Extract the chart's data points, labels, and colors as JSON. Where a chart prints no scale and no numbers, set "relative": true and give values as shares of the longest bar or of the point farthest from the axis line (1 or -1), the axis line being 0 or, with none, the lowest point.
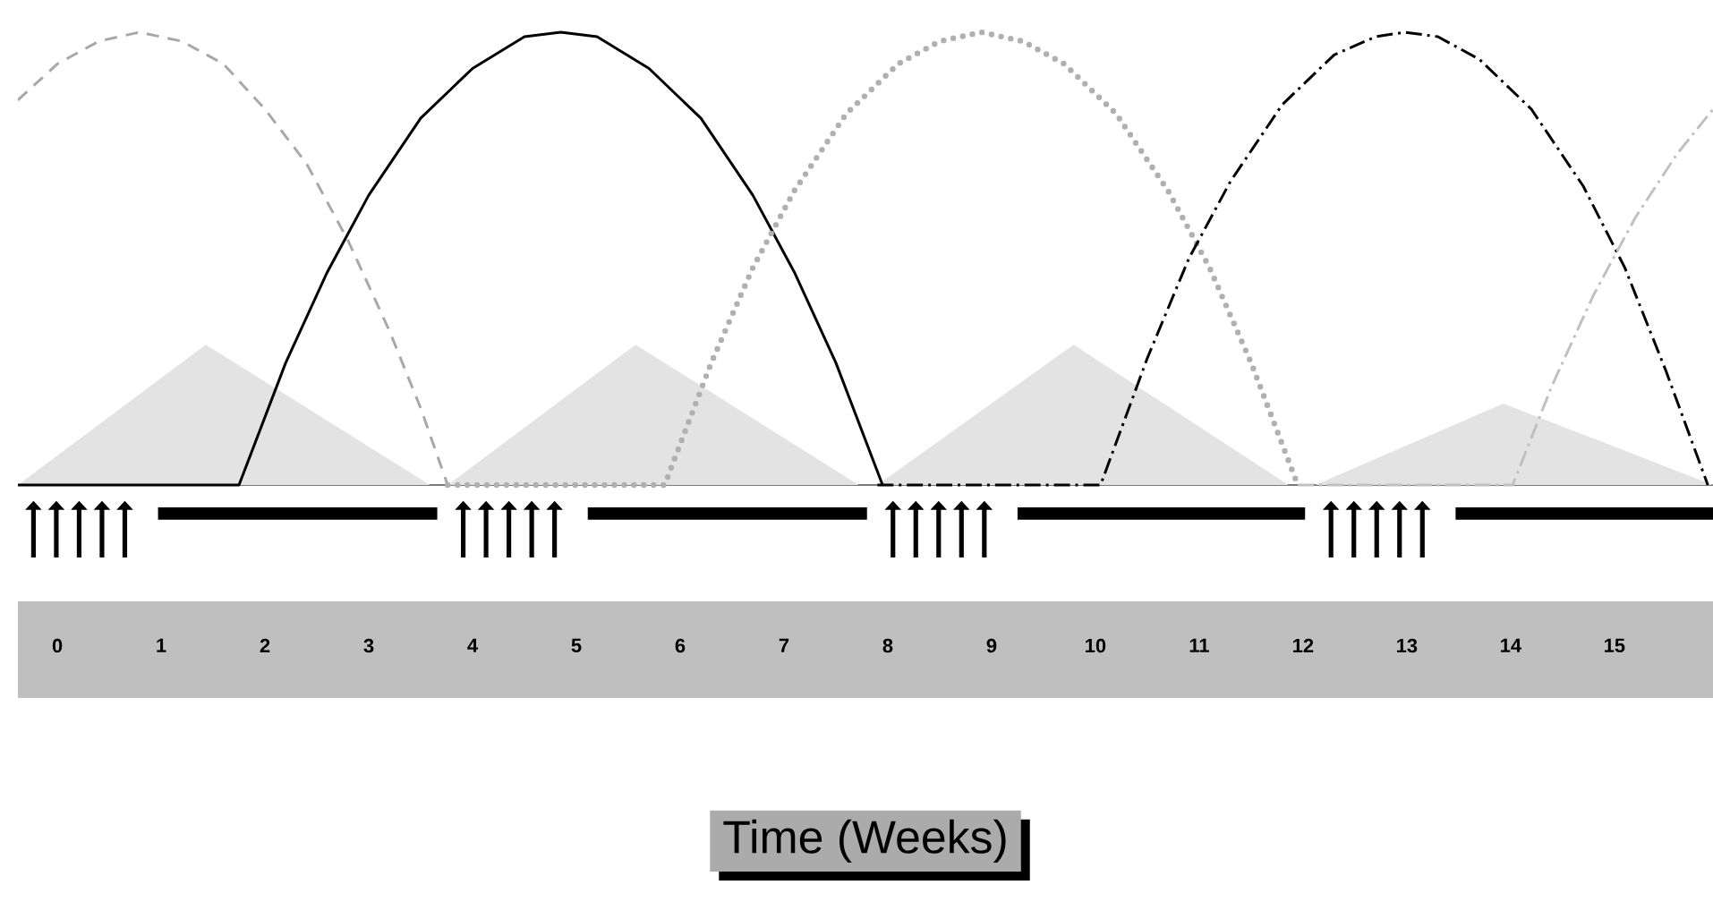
{
  "chart_data": {
    "type": "line",
    "relative": true,
    "xlabel": "Time (Weeks)",
    "xlim": [
      -0.38,
      15.95
    ],
    "xticks": [
      0,
      1,
      2,
      3,
      4,
      5,
      6,
      7,
      8,
      9,
      10,
      11,
      12,
      13,
      14,
      15
    ],
    "marker": "none",
    "grid": false,
    "series": [
      {
        "type": "area",
        "color": "#e3e3e3",
        "x": [
          -0.38,
          1.43,
          3.59
        ],
        "values": [
          0,
          0.31,
          0
        ]
      },
      {
        "type": "area",
        "color": "#e3e3e3",
        "x": [
          3.76,
          5.57,
          7.72
        ],
        "values": [
          0,
          0.31,
          0
        ]
      },
      {
        "type": "area",
        "color": "#e3e3e3",
        "x": [
          7.9,
          9.79,
          11.86
        ],
        "values": [
          0,
          0.31,
          0
        ]
      },
      {
        "type": "area",
        "color": "#e3e3e3",
        "x": [
          12.12,
          13.93,
          15.95
        ],
        "values": [
          0,
          0.18,
          0
        ]
      },
      {
        "color": "#a8a8a8",
        "line_style": "dashed",
        "x": [
          -0.38,
          0,
          0.4,
          0.79,
          1.2,
          1.6,
          2.0,
          2.4,
          2.8,
          3.2,
          3.5,
          3.76
        ],
        "values": [
          0.85,
          0.93,
          0.98,
          1.0,
          0.98,
          0.93,
          0.83,
          0.71,
          0.54,
          0.34,
          0.17,
          0
        ]
      },
      {
        "color": "#000000",
        "line_style": "solid",
        "x": [
          -0.38,
          1.75,
          2.2,
          2.6,
          3.0,
          3.5,
          4.0,
          4.5,
          4.85,
          5.2,
          5.7,
          6.2,
          6.7,
          7.1,
          7.5,
          7.95
        ],
        "values": [
          0,
          0,
          0.27,
          0.47,
          0.64,
          0.81,
          0.92,
          0.99,
          1.0,
          0.99,
          0.92,
          0.81,
          0.64,
          0.47,
          0.27,
          0
        ]
      },
      {
        "color": "#b0b0b0",
        "line_style": "dotted",
        "x": [
          3.76,
          5.85,
          6.3,
          6.7,
          7.1,
          7.6,
          8.1,
          8.5,
          8.9,
          9.3,
          9.7,
          10.2,
          10.7,
          11.1,
          11.5,
          11.95
        ],
        "values": [
          0,
          0,
          0.27,
          0.48,
          0.65,
          0.82,
          0.93,
          0.98,
          1.0,
          0.98,
          0.93,
          0.82,
          0.65,
          0.48,
          0.27,
          0
        ]
      },
      {
        "color": "#000000",
        "line_style": "dashdot",
        "x": [
          7.9,
          10.05,
          10.5,
          10.9,
          11.3,
          11.8,
          12.3,
          12.7,
          12.98,
          13.3,
          13.7,
          14.2,
          14.7,
          15.1,
          15.5,
          15.9
        ],
        "values": [
          0,
          0,
          0.28,
          0.5,
          0.67,
          0.84,
          0.95,
          0.99,
          1.0,
          0.99,
          0.94,
          0.83,
          0.66,
          0.48,
          0.25,
          0
        ]
      },
      {
        "color": "#c0c0c0",
        "line_style": "dashdot",
        "x": [
          11.95,
          14.02,
          14.4,
          14.8,
          15.2,
          15.6,
          15.95
        ],
        "values": [
          0,
          0,
          0.22,
          0.42,
          0.59,
          0.73,
          0.83
        ]
      }
    ]
  }
}
